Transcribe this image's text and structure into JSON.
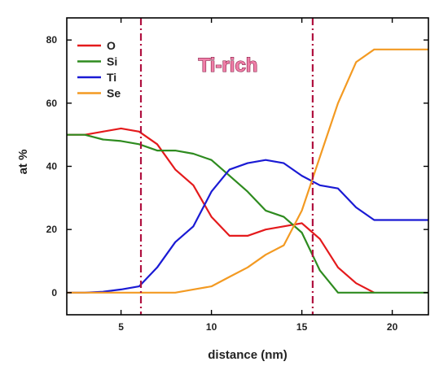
{
  "chart_data": {
    "type": "line",
    "xlabel": "distance (nm)",
    "ylabel": "at %",
    "xlim": [
      2,
      22
    ],
    "ylim": [
      -7,
      87
    ],
    "xticks": [
      5,
      10,
      15,
      20
    ],
    "yticks": [
      0,
      20,
      40,
      60,
      80
    ],
    "grid": false,
    "legend_position": "top-left",
    "annotation": "Ti-rich",
    "annotation_color": "#ef7fa8",
    "boundary_lines": [
      6.1,
      15.6
    ],
    "boundary_color": "#b0103f",
    "series": [
      {
        "name": "O",
        "color": "#e41a1c",
        "x": [
          2,
          3,
          4,
          5,
          6,
          7,
          8,
          9,
          10,
          11,
          12,
          13,
          14,
          15,
          16,
          17,
          18,
          19
        ],
        "y": [
          50,
          50,
          51,
          52,
          51,
          47,
          39,
          34,
          24,
          18,
          18,
          20,
          21,
          22,
          17,
          8,
          3,
          0
        ]
      },
      {
        "name": "Si",
        "color": "#2e8b1f",
        "x": [
          2,
          3,
          4,
          5,
          6,
          7,
          8,
          9,
          10,
          11,
          12,
          13,
          14,
          15,
          16,
          17,
          18,
          19,
          20,
          21,
          22
        ],
        "y": [
          50,
          50,
          48.5,
          48,
          47,
          45,
          45,
          44,
          42,
          37,
          32,
          26,
          24,
          19,
          7,
          0,
          0,
          0,
          0,
          0,
          0
        ]
      },
      {
        "name": "Ti",
        "color": "#1a1ad4",
        "x": [
          2,
          3,
          4,
          5,
          6,
          7,
          8,
          9,
          10,
          11,
          12,
          13,
          14,
          15,
          16,
          17,
          18,
          19,
          20,
          21,
          22
        ],
        "y": [
          0,
          0,
          0.3,
          1,
          2,
          8,
          16,
          21,
          32,
          39,
          41,
          42,
          41,
          37,
          34,
          33,
          27,
          23,
          23,
          23,
          23
        ]
      },
      {
        "name": "Se",
        "color": "#f39a22",
        "x": [
          2,
          3,
          4,
          5,
          6,
          7,
          8,
          9,
          10,
          11,
          12,
          13,
          14,
          15,
          16,
          17,
          18,
          19,
          20,
          21,
          22
        ],
        "y": [
          0,
          0,
          0,
          0,
          0,
          0,
          0,
          1,
          2,
          5,
          8,
          12,
          15,
          26,
          43,
          60,
          73,
          77,
          77,
          77,
          77
        ]
      }
    ]
  }
}
